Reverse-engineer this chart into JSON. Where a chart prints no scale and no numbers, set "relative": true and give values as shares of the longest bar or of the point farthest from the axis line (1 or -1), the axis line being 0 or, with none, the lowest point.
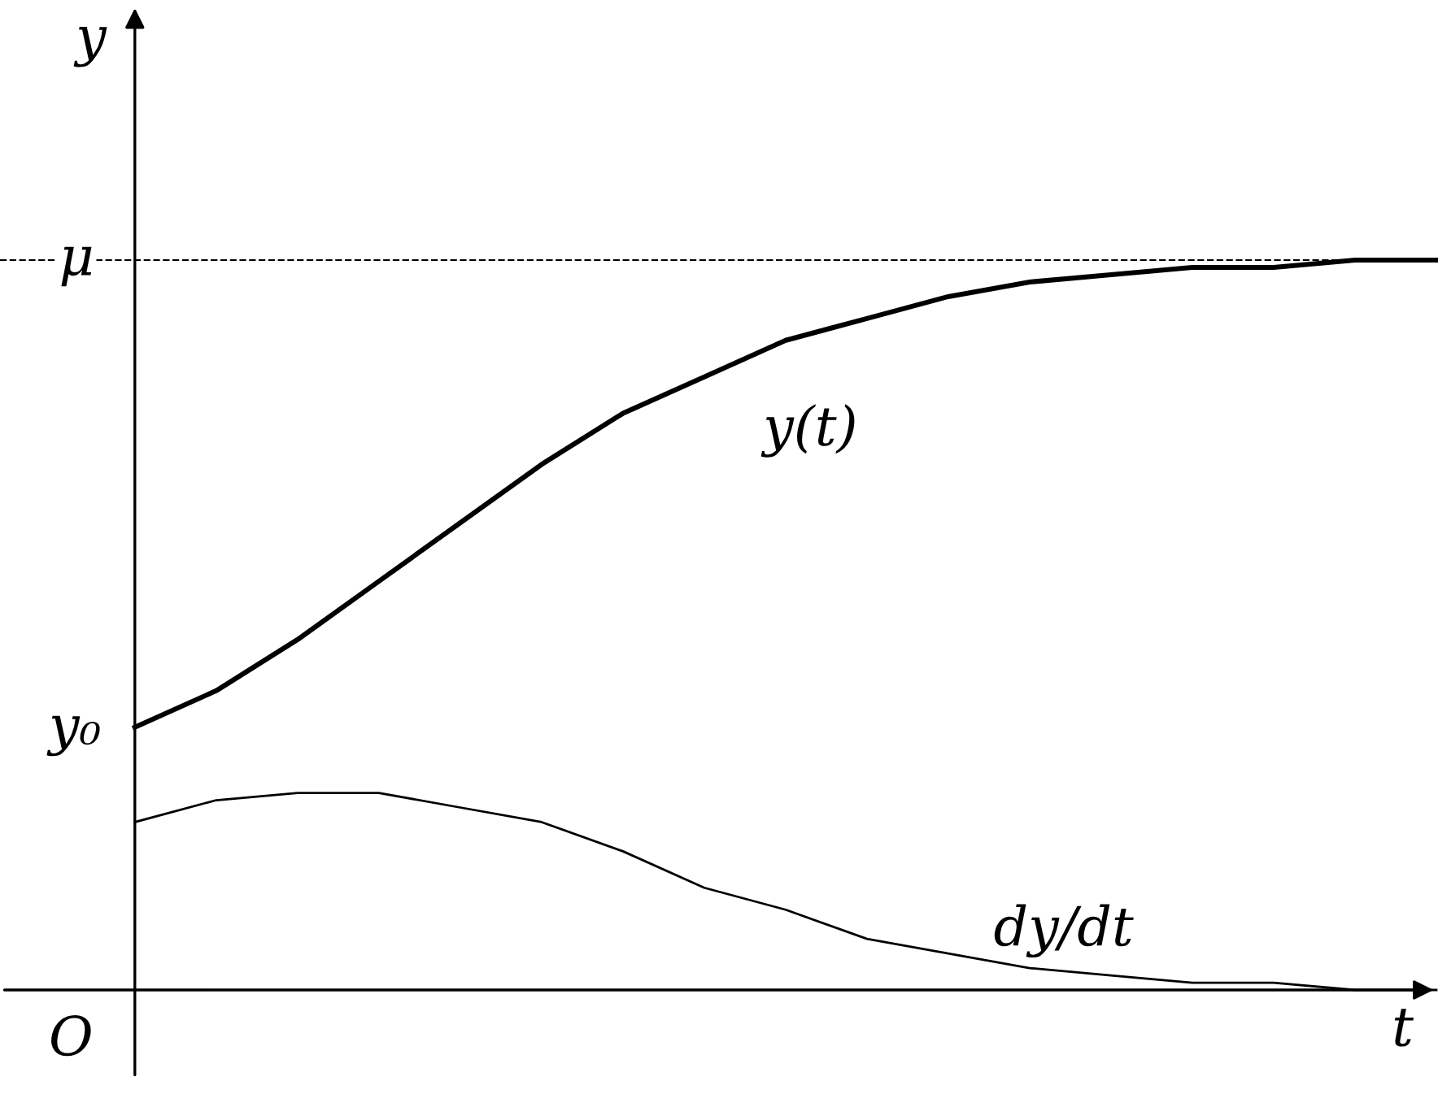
{
  "chart_data": {
    "type": "line",
    "relative": true,
    "xlabel": "t",
    "ylabel": "y",
    "categories": [
      null,
      null,
      null,
      null,
      null,
      null,
      null,
      null,
      null,
      null,
      null,
      null,
      null,
      null,
      null,
      null,
      null
    ],
    "series": [
      {
        "name": "y(t)",
        "color": "#000000",
        "values": [
          0.36,
          0.41,
          0.48,
          0.56,
          0.64,
          0.72,
          0.79,
          0.84,
          0.89,
          0.92,
          0.95,
          0.97,
          0.98,
          0.99,
          0.99,
          1.0,
          1.0
        ]
      },
      {
        "name": "dy/dt",
        "color": "#000000",
        "values": [
          0.23,
          0.26,
          0.27,
          0.27,
          0.25,
          0.23,
          0.19,
          0.14,
          0.11,
          0.07,
          0.05,
          0.03,
          0.02,
          0.01,
          0.01,
          0.0,
          0.0
        ]
      }
    ],
    "ref_lines": [
      {
        "axis": "y",
        "value": 1,
        "label": "μ",
        "line_style": "dashed",
        "color": "#000000"
      }
    ],
    "annotations": [
      "y₀",
      "O"
    ],
    "marker": "none",
    "line_style": "solid"
  }
}
